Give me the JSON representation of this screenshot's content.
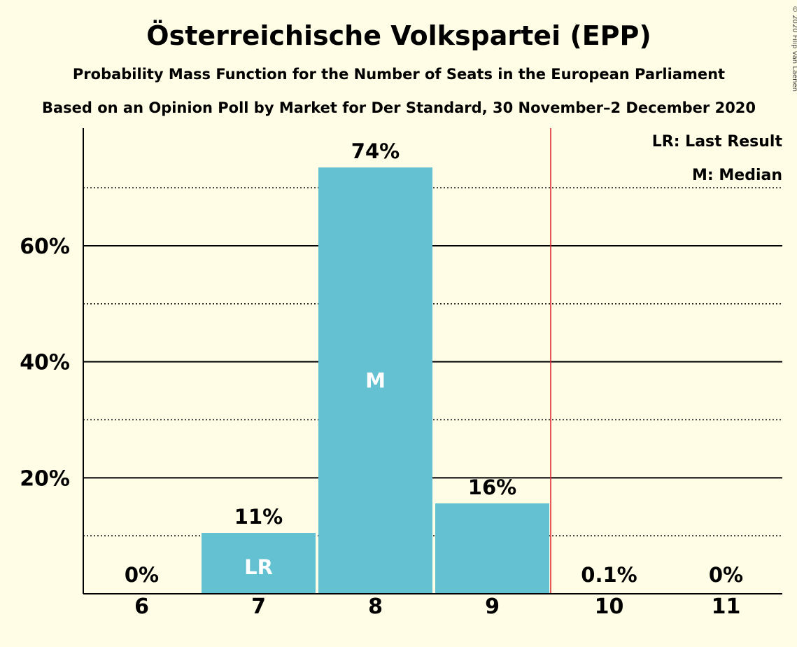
{
  "title": "Österreichische Volkspartei (EPP)",
  "subtitle1": "Probability Mass Function for the Number of Seats in the European Parliament",
  "subtitle2": "Based on an Opinion Poll by Market for Der Standard, 30 November–2 December 2020",
  "copyright": "© 2020 Filip van Laenen",
  "legend": {
    "last_result": "LR: Last Result",
    "median": "M: Median"
  },
  "colors": {
    "background": "#FFFDE5",
    "bar": "#63C1D1",
    "last_result_line": "#E0202A"
  },
  "chart_data": {
    "type": "bar",
    "categories": [
      "6",
      "7",
      "8",
      "9",
      "10",
      "11"
    ],
    "values": [
      0,
      10.5,
      73.5,
      15.6,
      0.1,
      0
    ],
    "data_labels": [
      "0%",
      "11%",
      "74%",
      "16%",
      "0.1%",
      "0%"
    ],
    "in_bar_labels": [
      "",
      "LR",
      "M",
      "",
      "",
      ""
    ],
    "ylim": [
      0,
      80
    ],
    "y_major_ticks": [
      20,
      40,
      60
    ],
    "y_tick_labels": [
      "20%",
      "40%",
      "60%"
    ],
    "y_minor_ticks": [
      10,
      30,
      50,
      70
    ],
    "last_result_line_after": "9",
    "grid": true,
    "legend_position": "top-right"
  }
}
